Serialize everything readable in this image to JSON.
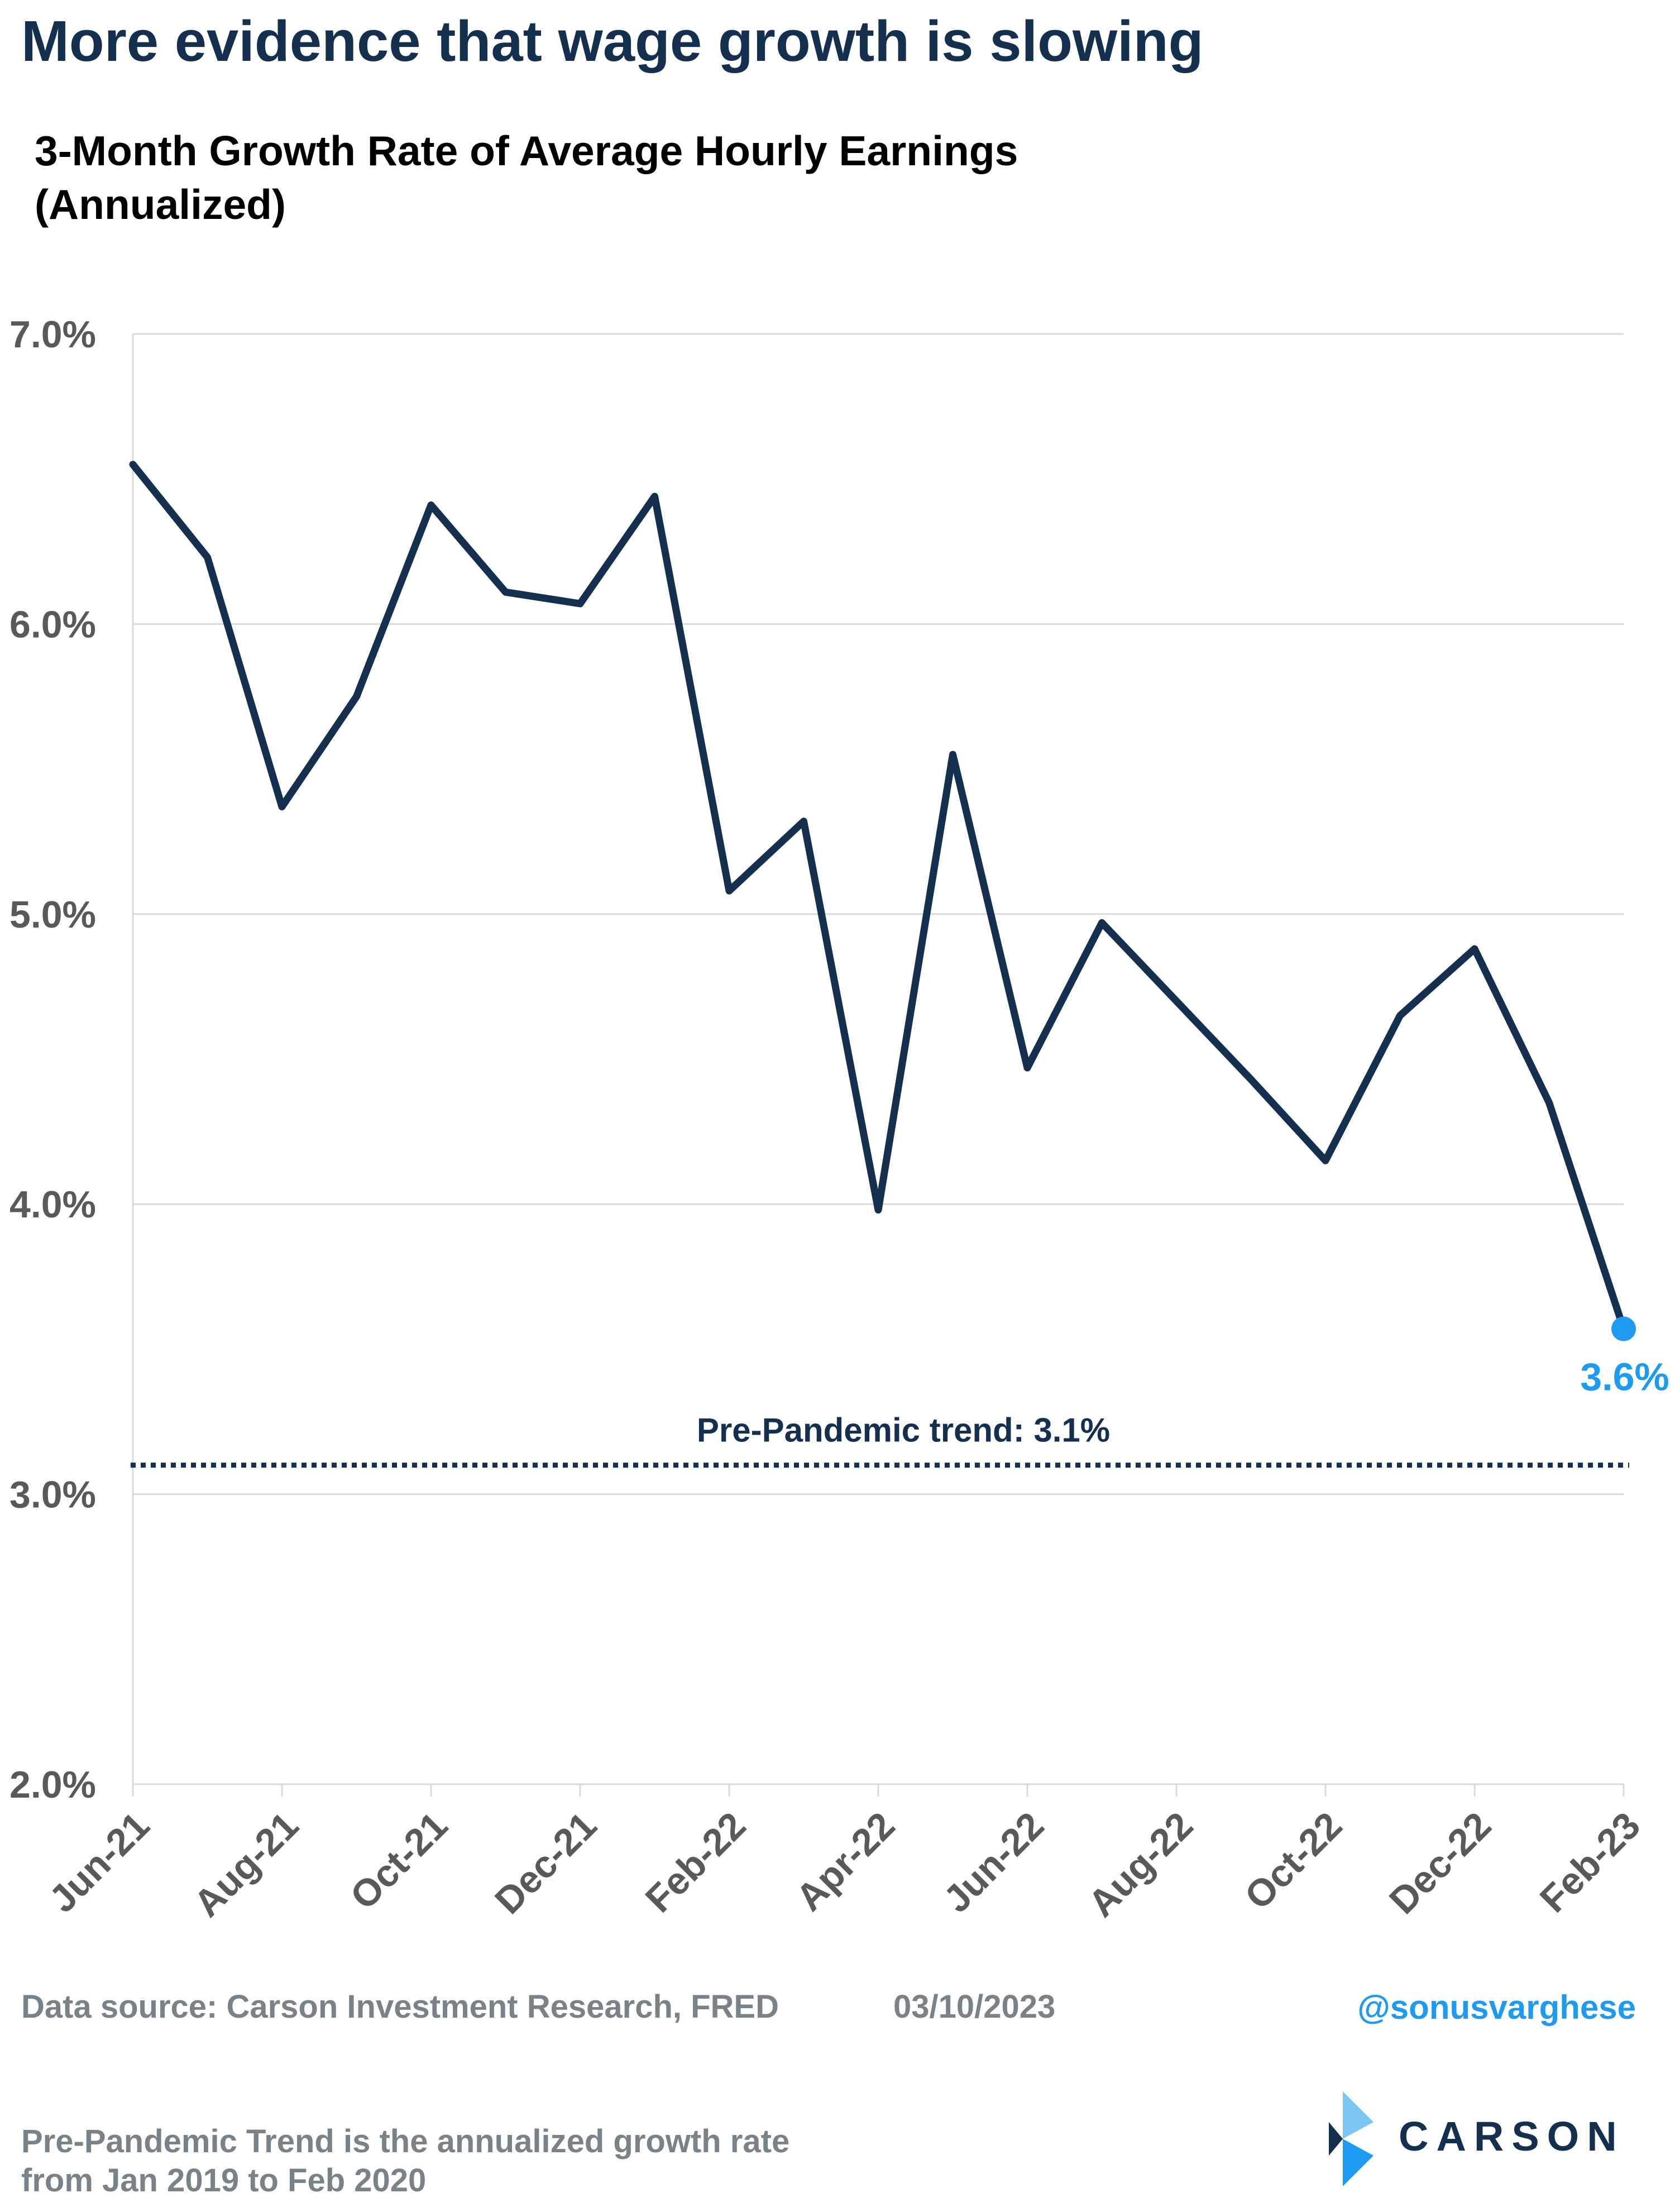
{
  "header": {
    "title": "More evidence that wage growth is slowing",
    "subtitle_line1": "3-Month Growth Rate of Average Hourly Earnings",
    "subtitle_line2": "(Annualized)"
  },
  "chart_data": {
    "type": "line",
    "title": "3-Month Growth Rate of Average Hourly Earnings (Annualized)",
    "xlabel": "",
    "ylabel": "",
    "x": [
      "Jun-21",
      "Jul-21",
      "Aug-21",
      "Sep-21",
      "Oct-21",
      "Nov-21",
      "Dec-21",
      "Jan-22",
      "Feb-22",
      "Mar-22",
      "Apr-22",
      "May-22",
      "Jun-22",
      "Jul-22",
      "Aug-22",
      "Sep-22",
      "Oct-22",
      "Nov-22",
      "Dec-22",
      "Jan-23",
      "Feb-23"
    ],
    "x_tick_labels": [
      "Jun-21",
      "Aug-21",
      "Oct-21",
      "Dec-21",
      "Feb-22",
      "Apr-22",
      "Jun-22",
      "Aug-22",
      "Oct-22",
      "Dec-22",
      "Feb-23"
    ],
    "y_tick_labels": [
      "7.0%",
      "6.0%",
      "5.0%",
      "4.0%",
      "3.0%",
      "2.0%"
    ],
    "y_ticks": [
      7.0,
      6.0,
      5.0,
      4.0,
      3.0,
      2.0
    ],
    "ylim": [
      2.0,
      7.0
    ],
    "grid": true,
    "series": [
      {
        "values": [
          6.55,
          6.23,
          5.37,
          5.75,
          6.41,
          6.11,
          6.07,
          6.44,
          5.08,
          5.32,
          3.98,
          5.55,
          4.47,
          4.97,
          4.7,
          4.43,
          4.15,
          4.65,
          4.88,
          4.35,
          3.57
        ],
        "color": "#14304e"
      }
    ],
    "reference_line": {
      "value": 3.1,
      "label": "Pre-Pandemic trend: 3.1%",
      "color": "#14304e",
      "style": "dotted"
    },
    "end_point": {
      "label": "3.6%",
      "color": "#1e9bf0"
    }
  },
  "footer": {
    "source": "Data source: Carson Investment Research, FRED",
    "date": "03/10/2023",
    "handle": "@sonusvarghese",
    "note_line1": "Pre-Pandemic Trend is the annualized growth rate",
    "note_line2": "from Jan 2019 to Feb 2020",
    "logo_text": "CARSON",
    "logo_colors": [
      "#14304e",
      "#1e9bf0",
      "#7cc6f5"
    ]
  }
}
